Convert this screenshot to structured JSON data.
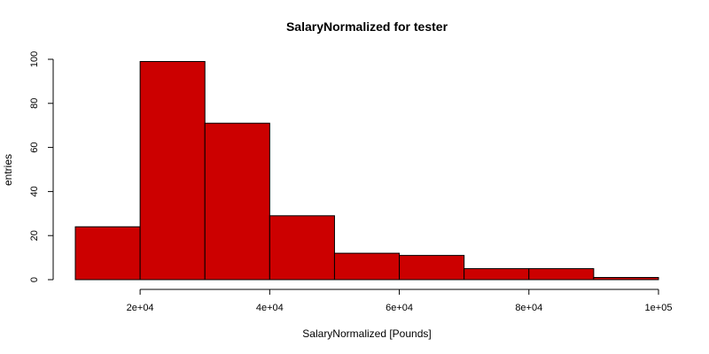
{
  "chart_data": {
    "type": "bar",
    "title": "SalaryNormalized for tester",
    "xlabel": "SalaryNormalized [Pounds]",
    "ylabel": "entries",
    "bar_color": "#cc0000",
    "bin_edges": [
      10000,
      20000,
      30000,
      40000,
      50000,
      60000,
      70000,
      80000,
      90000,
      100000
    ],
    "values": [
      24,
      99,
      71,
      29,
      12,
      11,
      5,
      5,
      1
    ],
    "xlim": [
      10000,
      100000
    ],
    "ylim": [
      0,
      100
    ],
    "x_ticks": [
      {
        "value": 20000,
        "label": "2e+04"
      },
      {
        "value": 40000,
        "label": "4e+04"
      },
      {
        "value": 60000,
        "label": "6e+04"
      },
      {
        "value": 80000,
        "label": "8e+04"
      },
      {
        "value": 100000,
        "label": "1e+05"
      }
    ],
    "y_ticks": [
      {
        "value": 0,
        "label": "0"
      },
      {
        "value": 20,
        "label": "20"
      },
      {
        "value": 40,
        "label": "40"
      },
      {
        "value": 60,
        "label": "60"
      },
      {
        "value": 80,
        "label": "80"
      },
      {
        "value": 100,
        "label": "100"
      }
    ],
    "grid": false,
    "legend": "none"
  }
}
